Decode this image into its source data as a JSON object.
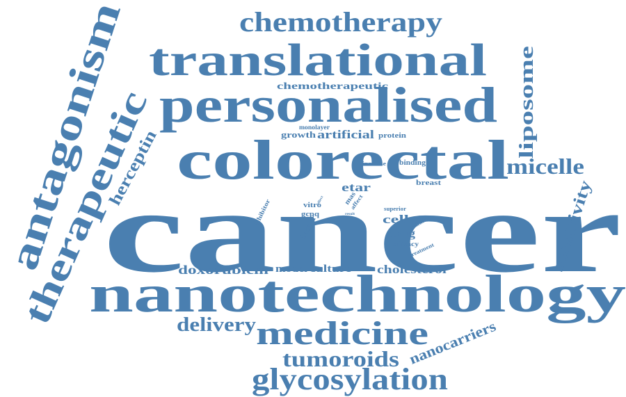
{
  "text_color": "#4a7fb0",
  "words": {
    "cancer": "cancer",
    "nanotechnology": "nanotechnology",
    "colorectal": "colorectal",
    "personalised": "personalised",
    "translational": "translational",
    "chemotherapy": "chemotherapy",
    "antagonism": "antagonism",
    "therapeutic": "therapeutic",
    "medicine": "medicine",
    "glycosylation": "glycosylation",
    "tumoroids": "tumoroids",
    "delivery": "delivery",
    "liposome": "liposome",
    "micelle": "micelle",
    "sensitivity": "sensitivity",
    "nanocarriers": "nanocarriers",
    "doxorubicin": "doxorubicin",
    "model": "model",
    "culture": "culture",
    "cholesterol": "cholesterol",
    "herceptin": "herceptin",
    "chemotherapeutic": "chemotherapeutic",
    "growth": "growth",
    "artificial": "artificial",
    "protein": "protein",
    "monolayer": "monolayer",
    "increase": "increase",
    "binding": "binding",
    "breast": "breast",
    "etar": "etar",
    "vitro": "vitro",
    "gcpq": "gcpq",
    "factor": "factor",
    "inhibitor": "inhibitor",
    "mas": "mas",
    "affect": "affect",
    "effect": "effect",
    "result": "result",
    "cell": "cell",
    "drug": "drug",
    "superior": "superior",
    "cellular": "cellular",
    "efficacy": "efficacy",
    "treatment": "treatment"
  }
}
